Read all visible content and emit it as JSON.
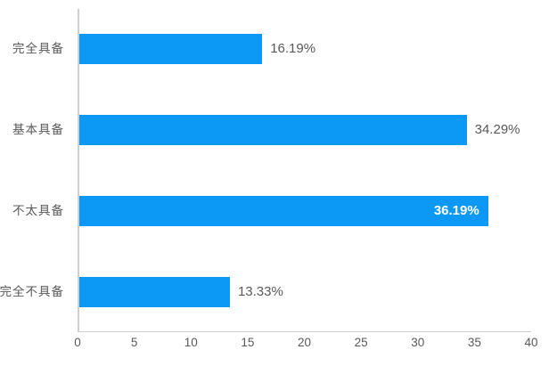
{
  "chart_data": {
    "type": "bar",
    "orientation": "horizontal",
    "title": "",
    "xlabel": "",
    "ylabel": "",
    "categories": [
      "完全具备",
      "基本具备",
      "不太具备",
      "完全不具备"
    ],
    "values": [
      16.19,
      34.29,
      36.19,
      13.33
    ],
    "value_labels": [
      "16.19%",
      "34.29%",
      "36.19%",
      "13.33%"
    ],
    "value_label_positions": [
      "outside",
      "outside",
      "inside",
      "outside"
    ],
    "xlim": [
      0,
      40
    ],
    "x_tick_labels": [
      "0",
      "5",
      "10",
      "15",
      "20",
      "25",
      "30",
      "35",
      "40"
    ],
    "grid": false,
    "legend": false,
    "bar_color": "#0b99f5"
  },
  "colors": {
    "bar": "#0b99f5",
    "axis_line": "#cfcfcf",
    "label_text": "#595959",
    "inside_value_text": "#ffffff",
    "background": "#ffffff"
  }
}
